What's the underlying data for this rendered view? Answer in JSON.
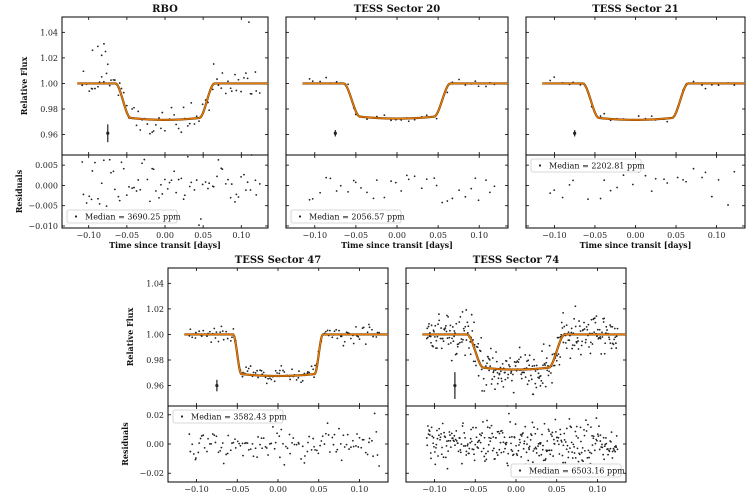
{
  "figure": {
    "ylabel_flux": "Relative Flux",
    "ylabel_resid": "Residuals",
    "xlabel": "Time since transit [days]",
    "colors": {
      "points": "#222222",
      "model": "#e87e04",
      "model_outline": "#7a3a00",
      "frame": "#000000"
    }
  },
  "chart_data": [
    {
      "type": "scatter",
      "title": "RBO",
      "xlim": [
        -0.135,
        0.135
      ],
      "xticks": [
        -0.1,
        -0.05,
        0.0,
        0.05,
        0.1
      ],
      "xtick_labels": [
        "−0.10",
        "−0.05",
        "0.00",
        "0.05",
        "0.10"
      ],
      "show_xlabel": true,
      "flux": {
        "ylim": [
          0.944,
          1.052
        ],
        "yticks": [
          0.96,
          0.98,
          1.0,
          1.02,
          1.04
        ],
        "ytick_labels": [
          "0.96",
          "0.98",
          "1.00",
          "1.02",
          "1.04"
        ],
        "show_ylabel": true
      },
      "resid": {
        "ylim": [
          -0.0105,
          0.0075
        ],
        "yticks": [
          -0.01,
          -0.005,
          0.0,
          0.005
        ],
        "ytick_labels": [
          "−0.010",
          "−0.005",
          "0.000",
          "0.005"
        ],
        "show_ylabel": true
      },
      "model": {
        "depth": 0.027,
        "t_ingress_start": 0.065,
        "t_ingress_end": 0.045
      },
      "noise": {
        "flux": 0.006,
        "resid": 0.0035,
        "n": 80
      },
      "flux_outliers": [
        [
          -0.095,
          1.026
        ],
        [
          -0.088,
          1.029
        ],
        [
          -0.083,
          1.022
        ],
        [
          -0.078,
          1.025
        ],
        [
          -0.08,
          1.031
        ],
        [
          -0.075,
          1.015
        ],
        [
          0.11,
          1.048
        ]
      ],
      "errorbar": {
        "x": -0.075,
        "y": 0.961,
        "half": 0.007
      },
      "legend": {
        "text": "Median = 3690.25 ppm",
        "position": "lower-left"
      }
    },
    {
      "type": "scatter",
      "title": "TESS Sector 20",
      "xlim": [
        -0.135,
        0.135
      ],
      "xticks": [
        -0.1,
        -0.05,
        0.0,
        0.05,
        0.1
      ],
      "xtick_labels": [
        "−0.10",
        "−0.05",
        "0.00",
        "0.05",
        "0.10"
      ],
      "show_xlabel": true,
      "flux": {
        "ylim": [
          0.944,
          1.052
        ],
        "yticks": [
          0.96,
          0.98,
          1.0,
          1.02,
          1.04
        ],
        "ytick_labels": [],
        "show_ylabel": false
      },
      "resid": {
        "ylim": [
          -0.0105,
          0.0075
        ],
        "yticks": [
          -0.01,
          -0.005,
          0.0,
          0.005
        ],
        "ytick_labels": [],
        "show_ylabel": false
      },
      "model": {
        "depth": 0.026,
        "t_ingress_start": 0.065,
        "t_ingress_end": 0.045
      },
      "noise": {
        "flux": 0.002,
        "resid": 0.0022,
        "n": 36
      },
      "flux_outliers": [],
      "errorbar": {
        "x": -0.075,
        "y": 0.961,
        "half": 0.0025
      },
      "legend": {
        "text": "Median = 2056.57 ppm",
        "position": "lower-left"
      }
    },
    {
      "type": "scatter",
      "title": "TESS Sector 21",
      "xlim": [
        -0.135,
        0.135
      ],
      "xticks": [
        -0.1,
        -0.05,
        0.0,
        0.05,
        0.1
      ],
      "xtick_labels": [
        "−0.10",
        "−0.05",
        "0.00",
        "0.05",
        "0.10"
      ],
      "show_xlabel": true,
      "flux": {
        "ylim": [
          0.944,
          1.052
        ],
        "yticks": [
          0.96,
          0.98,
          1.0,
          1.02,
          1.04
        ],
        "ytick_labels": [],
        "show_ylabel": false
      },
      "resid": {
        "ylim": [
          -0.0105,
          0.0075
        ],
        "yticks": [
          -0.01,
          -0.005,
          0.0,
          0.005
        ],
        "ytick_labels": [],
        "show_ylabel": false
      },
      "model": {
        "depth": 0.027,
        "t_ingress_start": 0.065,
        "t_ingress_end": 0.045
      },
      "noise": {
        "flux": 0.002,
        "resid": 0.0022,
        "n": 30
      },
      "flux_outliers": [],
      "errorbar": {
        "x": -0.075,
        "y": 0.961,
        "half": 0.0025
      },
      "legend": {
        "text": "Median = 2202.81 ppm",
        "position": "upper-left"
      }
    },
    {
      "type": "scatter",
      "title": "TESS Sector 47",
      "xlim": [
        -0.135,
        0.135
      ],
      "xticks": [
        -0.1,
        -0.05,
        0.0,
        0.05,
        0.1
      ],
      "xtick_labels": [
        "−0.10",
        "−0.05",
        "0.00",
        "0.05",
        "0.10"
      ],
      "show_xlabel": false,
      "flux": {
        "ylim": [
          0.944,
          1.052
        ],
        "yticks": [
          0.96,
          0.98,
          1.0,
          1.02,
          1.04
        ],
        "ytick_labels": [
          "0.96",
          "0.98",
          "1.00",
          "1.02",
          "1.04"
        ],
        "show_ylabel": true
      },
      "resid": {
        "ylim": [
          -0.026,
          0.026
        ],
        "yticks": [
          -0.02,
          0.0,
          0.02
        ],
        "ytick_labels": [
          "−0.02",
          "0.00",
          "0.02"
        ],
        "show_ylabel": true
      },
      "model": {
        "depth": 0.031,
        "t_ingress_start": 0.055,
        "t_ingress_end": 0.045
      },
      "noise": {
        "flux": 0.0035,
        "resid": 0.006,
        "n": 130
      },
      "flux_outliers": [],
      "errorbar": {
        "x": -0.075,
        "y": 0.96,
        "half": 0.0045
      },
      "legend": {
        "text": "Median = 3582.43 ppm",
        "position": "upper-left"
      }
    },
    {
      "type": "scatter",
      "title": "TESS Sector 74",
      "xlim": [
        -0.135,
        0.135
      ],
      "xticks": [
        -0.1,
        -0.05,
        0.0,
        0.05,
        0.1
      ],
      "xtick_labels": [
        "−0.10",
        "−0.05",
        "0.00",
        "0.05",
        "0.10"
      ],
      "show_xlabel": false,
      "flux": {
        "ylim": [
          0.944,
          1.052
        ],
        "yticks": [
          0.96,
          0.98,
          1.0,
          1.02,
          1.04
        ],
        "ytick_labels": [],
        "show_ylabel": false
      },
      "resid": {
        "ylim": [
          -0.026,
          0.026
        ],
        "yticks": [
          -0.02,
          0.0,
          0.02
        ],
        "ytick_labels": [],
        "show_ylabel": false
      },
      "model": {
        "depth": 0.026,
        "t_ingress_start": 0.06,
        "t_ingress_end": 0.04
      },
      "noise": {
        "flux": 0.0085,
        "resid": 0.0075,
        "n": 330
      },
      "flux_outliers": [],
      "errorbar": {
        "x": -0.075,
        "y": 0.96,
        "half": 0.0105
      },
      "legend": {
        "text": "Median = 6503.16 ppm",
        "position": "lower-right"
      }
    }
  ]
}
